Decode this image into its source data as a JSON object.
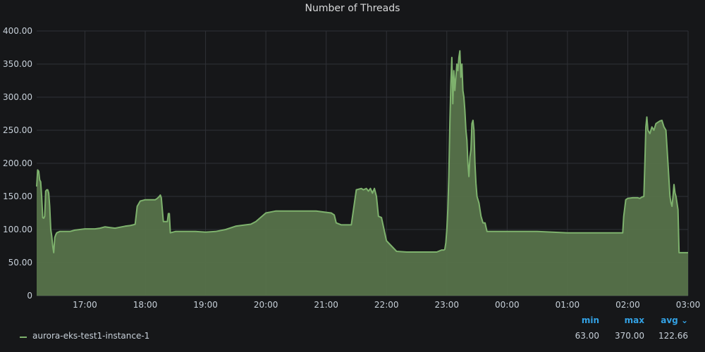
{
  "chart_data": {
    "type": "area",
    "title": "Number of Threads",
    "y_ticks": [
      "0",
      "50.00",
      "100.00",
      "150.00",
      "200.00",
      "250.00",
      "300.00",
      "350.00",
      "400.00"
    ],
    "ylim": [
      0,
      400
    ],
    "x_ticks": [
      "17:00",
      "18:00",
      "19:00",
      "20:00",
      "21:00",
      "22:00",
      "23:00",
      "00:00",
      "01:00",
      "02:00",
      "03:00"
    ],
    "xlim": [
      "16:12",
      "03:00"
    ],
    "grid": true,
    "series_color": "#7eb26d",
    "fill_color": "#56724a",
    "series": [
      {
        "name": "aurora-eks-test1-instance-1",
        "x": [
          "16:12",
          "16:13",
          "16:14",
          "16:15",
          "16:16",
          "16:17",
          "16:18",
          "16:19",
          "16:20",
          "16:21",
          "16:22",
          "16:23",
          "16:24",
          "16:25",
          "16:26",
          "16:27",
          "16:28",
          "16:29",
          "16:30",
          "16:31",
          "16:32",
          "16:35",
          "16:40",
          "16:45",
          "16:50",
          "17:00",
          "17:10",
          "17:15",
          "17:20",
          "17:25",
          "17:30",
          "17:40",
          "17:45",
          "17:48",
          "17:50",
          "17:52",
          "17:55",
          "18:00",
          "18:05",
          "18:10",
          "18:12",
          "18:14",
          "18:15",
          "18:16",
          "18:18",
          "18:22",
          "18:23",
          "18:24",
          "18:25",
          "18:30",
          "18:40",
          "18:50",
          "19:00",
          "19:10",
          "19:20",
          "19:30",
          "19:40",
          "19:45",
          "19:50",
          "20:00",
          "20:10",
          "20:20",
          "20:30",
          "20:40",
          "20:45",
          "20:50",
          "21:00",
          "21:05",
          "21:08",
          "21:10",
          "21:15",
          "21:20",
          "21:25",
          "21:30",
          "21:35",
          "21:37",
          "21:40",
          "21:42",
          "21:44",
          "21:46",
          "21:48",
          "21:50",
          "21:52",
          "21:55",
          "22:00",
          "22:10",
          "22:20",
          "22:30",
          "22:40",
          "22:50",
          "22:55",
          "22:56",
          "22:57",
          "22:58",
          "22:59",
          "23:00",
          "23:01",
          "23:02",
          "23:03",
          "23:04",
          "23:05",
          "23:06",
          "23:07",
          "23:08",
          "23:09",
          "23:10",
          "23:11",
          "23:12",
          "23:13",
          "23:14",
          "23:15",
          "23:16",
          "23:17",
          "23:18",
          "23:19",
          "23:20",
          "23:21",
          "23:22",
          "23:23",
          "23:24",
          "23:25",
          "23:26",
          "23:27",
          "23:28",
          "23:29",
          "23:30",
          "23:32",
          "23:34",
          "23:36",
          "23:38",
          "23:40",
          "23:45",
          "23:50",
          "00:00",
          "00:30",
          "01:00",
          "01:10",
          "01:20",
          "01:30",
          "01:40",
          "01:50",
          "01:55",
          "01:56",
          "01:58",
          "02:00",
          "02:05",
          "02:10",
          "02:12",
          "02:14",
          "02:16",
          "02:17",
          "02:18",
          "02:19",
          "02:20",
          "02:22",
          "02:24",
          "02:26",
          "02:28",
          "02:30",
          "02:32",
          "02:34",
          "02:36",
          "02:38",
          "02:40",
          "02:42",
          "02:43",
          "02:44",
          "02:45",
          "02:46",
          "02:47",
          "02:48",
          "02:49",
          "02:50",
          "02:51",
          "03:00"
        ],
        "y": [
          165,
          190,
          188,
          175,
          172,
          150,
          118,
          117,
          120,
          158,
          160,
          160,
          155,
          135,
          100,
          90,
          75,
          65,
          88,
          92,
          95,
          97,
          97,
          97,
          99,
          101,
          101,
          102,
          104,
          103,
          102,
          105,
          106,
          107,
          108,
          135,
          143,
          145,
          145,
          145,
          147,
          150,
          152,
          148,
          112,
          112,
          124,
          124,
          95,
          97,
          97,
          97,
          96,
          97,
          100,
          105,
          107,
          108,
          112,
          125,
          128,
          128,
          128,
          128,
          128,
          128,
          126,
          125,
          122,
          110,
          107,
          107,
          107,
          160,
          162,
          160,
          162,
          158,
          162,
          155,
          162,
          150,
          120,
          118,
          83,
          67,
          66,
          66,
          66,
          66,
          69,
          69,
          69,
          70,
          80,
          100,
          130,
          180,
          260,
          320,
          360,
          290,
          340,
          310,
          330,
          350,
          340,
          360,
          370,
          330,
          350,
          310,
          300,
          280,
          250,
          235,
          200,
          180,
          210,
          220,
          260,
          265,
          250,
          200,
          170,
          150,
          140,
          120,
          110,
          110,
          97,
          97,
          97,
          97,
          97,
          95,
          95,
          95,
          95,
          95,
          95,
          95,
          120,
          145,
          147,
          148,
          148,
          147,
          149,
          150,
          200,
          255,
          270,
          250,
          245,
          255,
          250,
          260,
          262,
          264,
          265,
          255,
          250,
          200,
          150,
          140,
          135,
          150,
          168,
          155,
          150,
          140,
          130,
          65,
          65
        ]
      }
    ],
    "legend": {
      "headers": [
        "min",
        "max",
        "avg ⌄"
      ],
      "values": [
        "63.00",
        "370.00",
        "122.66"
      ]
    }
  }
}
